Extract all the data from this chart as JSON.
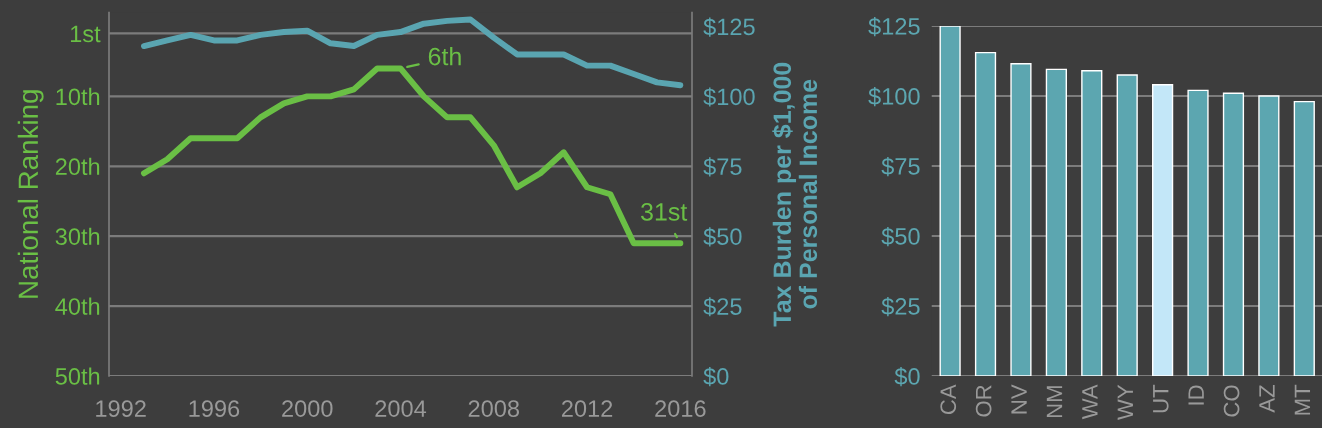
{
  "chart_data": [
    {
      "type": "line",
      "x": [
        1993,
        1994,
        1995,
        1996,
        1997,
        1998,
        1999,
        2000,
        2001,
        2002,
        2003,
        2004,
        2005,
        2006,
        2007,
        2008,
        2009,
        2010,
        2011,
        2012,
        2013,
        2014,
        2015,
        2016
      ],
      "series": [
        {
          "color": "#6abf45",
          "values": [
            21,
            19,
            16,
            16,
            16,
            13,
            11,
            10,
            10,
            9,
            6,
            6,
            10,
            13,
            13,
            17,
            23,
            21,
            18,
            23,
            24,
            31,
            31,
            31
          ]
        },
        {
          "color": "#5aa5b1",
          "axis": "y2",
          "values": [
            118,
            120,
            122,
            120,
            120,
            122,
            123,
            123.5,
            119,
            118,
            122,
            123,
            126,
            127,
            127.5,
            121,
            115,
            115,
            115,
            111,
            111,
            108,
            105,
            104
          ]
        }
      ],
      "ylabel": "National Ranking",
      "y2label": "Tax Burden per $1,000\nof Personal Income",
      "xlim": [
        1991.5,
        2016.5
      ],
      "xticks": [
        1992,
        1996,
        2000,
        2004,
        2008,
        2012,
        2016
      ],
      "ylim": [
        50,
        -2
      ],
      "yticks": [
        {
          "value": 1,
          "label": "1st"
        },
        {
          "value": 10,
          "label": "10th"
        },
        {
          "value": 20,
          "label": "20th"
        },
        {
          "value": 30,
          "label": "30th"
        },
        {
          "value": 40,
          "label": "40th"
        },
        {
          "value": 50,
          "label": "50th"
        }
      ],
      "y2lim": [
        0,
        130
      ],
      "y2ticks": [
        {
          "value": 0,
          "label": "$0"
        },
        {
          "value": 25,
          "label": "$25"
        },
        {
          "value": 50,
          "label": "$50"
        },
        {
          "value": 75,
          "label": "$75"
        },
        {
          "value": 100,
          "label": "$100"
        },
        {
          "value": 125,
          "label": "$125"
        }
      ],
      "grid": "y",
      "annotations": [
        {
          "text": "6th",
          "x": 2004,
          "y": 6
        },
        {
          "text": "31st",
          "x": 2016,
          "y": 31
        }
      ]
    },
    {
      "type": "bar",
      "categories": [
        "CA",
        "OR",
        "NV",
        "NM",
        "WA",
        "WY",
        "UT",
        "ID",
        "CO",
        "AZ",
        "MT"
      ],
      "values": [
        125,
        115.5,
        111.5,
        109.5,
        109,
        107.5,
        104,
        102,
        101,
        100,
        98
      ],
      "colors": [
        "#5ca6b0",
        "#5ca6b0",
        "#5ca6b0",
        "#5ca6b0",
        "#5ca6b0",
        "#5ca6b0",
        "#c3e7f8",
        "#5ca6b0",
        "#5ca6b0",
        "#5ca6b0",
        "#5ca6b0"
      ],
      "ylim": [
        0,
        125
      ],
      "yticks": [
        {
          "value": 0,
          "label": "$0"
        },
        {
          "value": 25,
          "label": "$25"
        },
        {
          "value": 50,
          "label": "$50"
        },
        {
          "value": 75,
          "label": "$75"
        },
        {
          "value": 100,
          "label": "$100"
        },
        {
          "value": 125,
          "label": "$125"
        }
      ],
      "grid": "y"
    }
  ]
}
